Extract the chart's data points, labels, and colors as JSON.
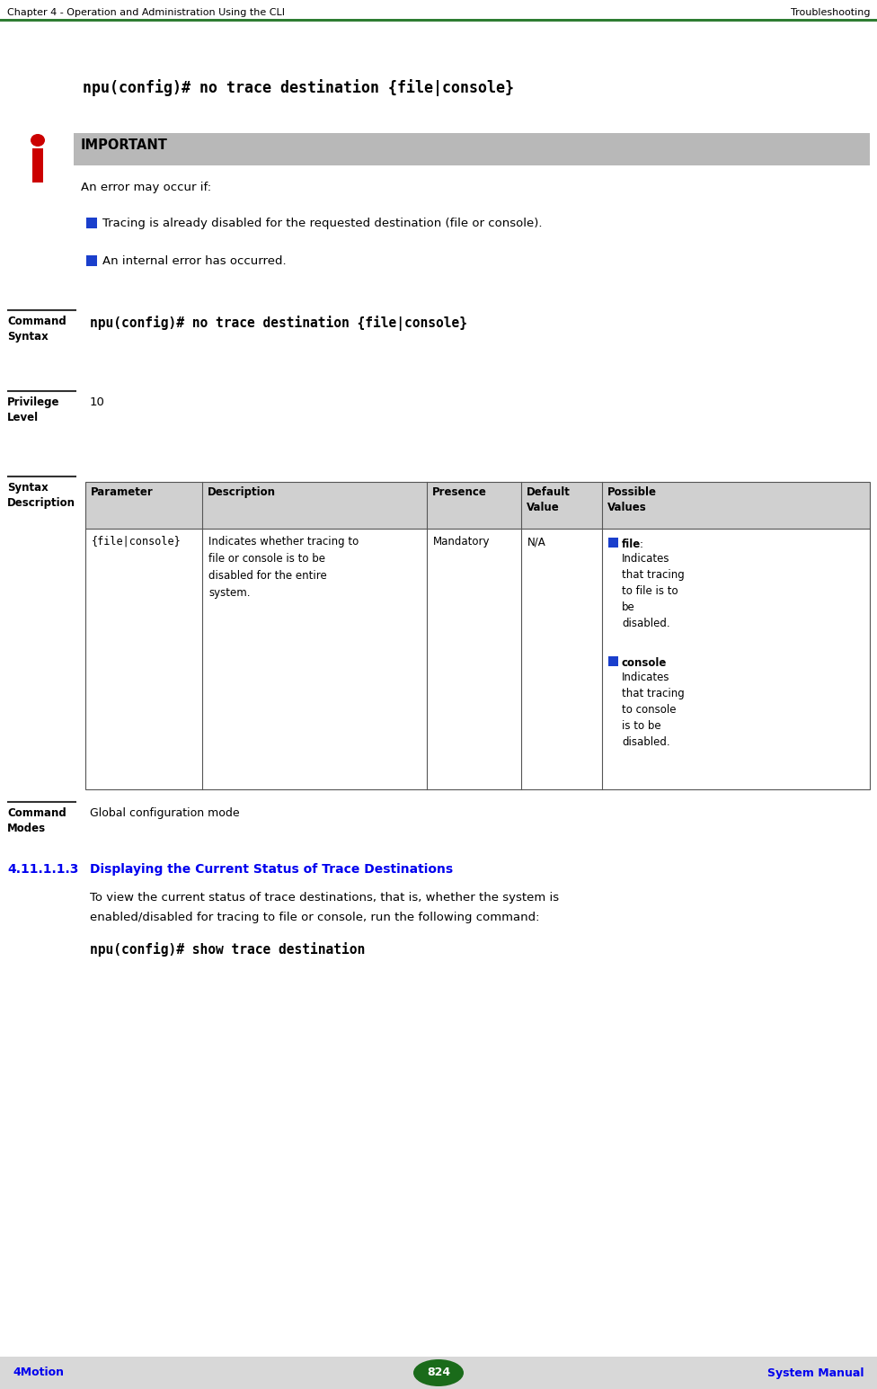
{
  "header_left": "Chapter 4 - Operation and Administration Using the CLI",
  "header_right": "Troubleshooting",
  "footer_left": "4Motion",
  "footer_center": "824",
  "footer_right": "System Manual",
  "header_line_color": "#2e7d32",
  "footer_bg_color": "#d8d8d8",
  "page_bg": "#ffffff",
  "command_text": "npu(config)# no trace destination {file|console}",
  "important_label": "IMPORTANT",
  "important_bg": "#b8b8b8",
  "important_body": "An error may occur if:",
  "bullet_items": [
    "Tracing is already disabled for the requested destination (file or console).",
    "An internal error has occurred."
  ],
  "bullet_color": "#1a3fcc",
  "table_headers": [
    "Parameter",
    "Description",
    "Presence",
    "Default\nValue",
    "Possible\nValues"
  ],
  "tbl_param": "{file|console}",
  "tbl_desc": "Indicates whether tracing to\nfile or console is to be\ndisabled for the entire\nsystem.",
  "tbl_presence": "Mandatory",
  "tbl_default": "N/A",
  "pv_file_bold": "file",
  "pv_file_rest": ":\nIndicates\nthat tracing\nto file is to\nbe\ndisabled.",
  "pv_console_bold": "console",
  "pv_console_rest": ":\nIndicates\nthat tracing\nto console\nis to be\ndisabled.",
  "cmd_syntax_label": "Command\nSyntax",
  "cmd_syntax_content": "npu(config)# no trace destination {file|console}",
  "priv_label": "Privilege\nLevel",
  "priv_content": "10",
  "syn_desc_label": "Syntax\nDescription",
  "cmd_modes_label": "Command\nModes",
  "cmd_modes_content": "Global configuration mode",
  "section_num": "4.11.1.1.3",
  "section_title": "Displaying the Current Status of Trace Destinations",
  "section_body1": "To view the current status of trace destinations, that is, whether the system is",
  "section_body2": "enabled/disabled for tracing to file or console, run the following command:",
  "section_command": "npu(config)# show trace destination",
  "divider_color": "#333333",
  "table_border_color": "#555555",
  "sec_color": "#0000ee"
}
